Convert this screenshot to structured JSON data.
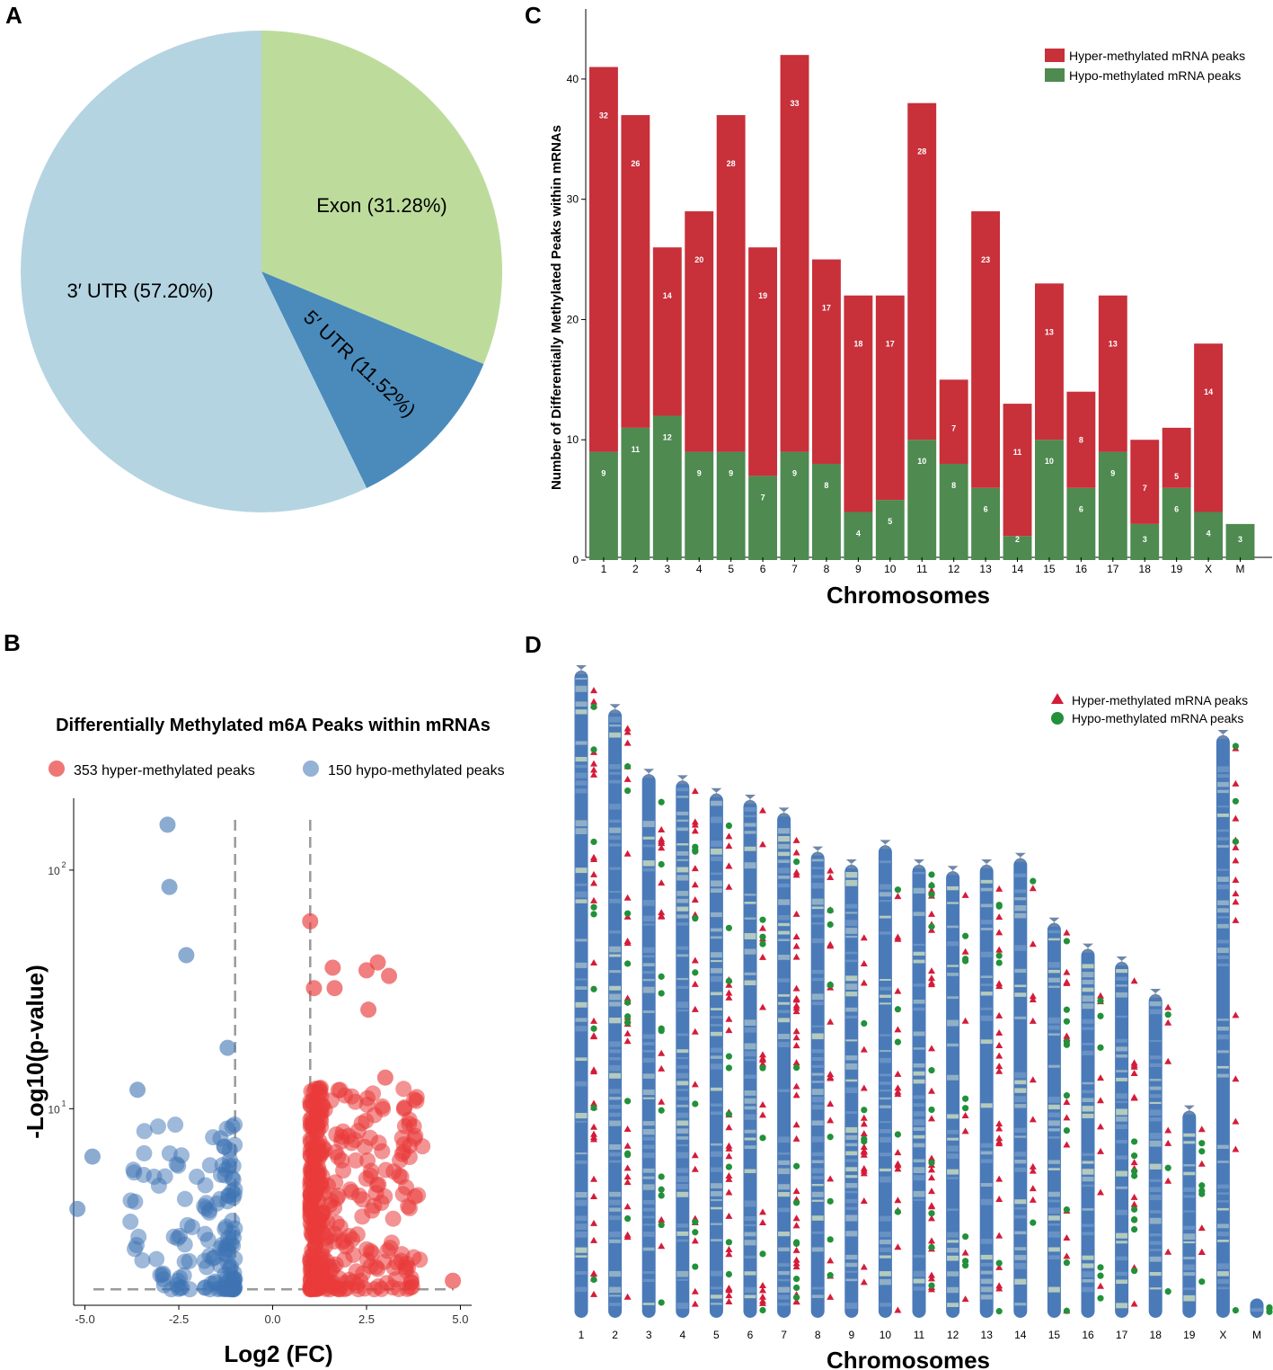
{
  "panels": {
    "A": "A",
    "B": "B",
    "C": "C",
    "D": "D"
  },
  "colors": {
    "hyper": "#c8303a",
    "hypo": "#4f8a51",
    "pie_utr3": "#b5d4e2",
    "pie_exon": "#bddc9c",
    "pie_utr5": "#4a8bbb",
    "volcano_hyper": "#e93b3b",
    "volcano_hypo": "#3d73b3",
    "ideogram": "#4a7ab8",
    "hyper_marker": "#d41c3a",
    "hypo_marker": "#22913a"
  },
  "chart_data": [
    {
      "id": "A",
      "type": "pie",
      "labels": [
        "3′ UTR (57.20%)",
        "Exon (31.28%)",
        "5′ UTR (11.52%)"
      ],
      "categories": [
        "3′ UTR",
        "Exon",
        "5′ UTR"
      ],
      "values": [
        57.2,
        31.28,
        11.52
      ]
    },
    {
      "id": "B",
      "type": "scatter",
      "title": "Differentially Methylated m6A Peaks within mRNAs",
      "xlabel": "Log2 (FC)",
      "ylabel": "-Log10(p-value)",
      "xlim": [
        -5.3,
        5.3
      ],
      "ylim_log": [
        1.5,
        200
      ],
      "x_ticks": [
        "-5.0",
        "-2.5",
        "0.0",
        "2.5",
        "5.0"
      ],
      "y_ticks": [
        {
          "base": "10",
          "exp": "1",
          "value": 10
        },
        {
          "base": "10",
          "exp": "2",
          "value": 100
        }
      ],
      "thresholds": {
        "x": [
          -1,
          1
        ],
        "y": 1.75
      },
      "legend": [
        {
          "label": "353 hyper-methylated peaks",
          "series": "hyper"
        },
        {
          "label": "150 hypo-methylated peaks",
          "series": "hypo"
        }
      ],
      "series": [
        {
          "name": "hyper",
          "count": 353
        },
        {
          "name": "hypo",
          "count": 150
        }
      ],
      "labeled_points": [
        {
          "series": "hypo",
          "x": -2.8,
          "y": 155
        },
        {
          "series": "hypo",
          "x": -2.75,
          "y": 85
        },
        {
          "series": "hypo",
          "x": -2.3,
          "y": 44
        },
        {
          "series": "hypo",
          "x": -1.2,
          "y": 18
        },
        {
          "series": "hypo",
          "x": -3.6,
          "y": 12
        },
        {
          "series": "hypo",
          "x": -4.8,
          "y": 6.3
        },
        {
          "series": "hypo",
          "x": -5.2,
          "y": 3.8
        },
        {
          "series": "hyper",
          "x": 1.0,
          "y": 61
        },
        {
          "series": "hyper",
          "x": 1.6,
          "y": 39
        },
        {
          "series": "hyper",
          "x": 2.8,
          "y": 41
        },
        {
          "series": "hyper",
          "x": 2.5,
          "y": 38
        },
        {
          "series": "hyper",
          "x": 3.1,
          "y": 36
        },
        {
          "series": "hyper",
          "x": 1.1,
          "y": 32
        },
        {
          "series": "hyper",
          "x": 1.65,
          "y": 32
        },
        {
          "series": "hyper",
          "x": 2.55,
          "y": 26
        },
        {
          "series": "hyper",
          "x": 3.0,
          "y": 13.5
        },
        {
          "series": "hyper",
          "x": 3.5,
          "y": 10
        },
        {
          "series": "hyper",
          "x": 4.8,
          "y": 1.9
        }
      ]
    },
    {
      "id": "C",
      "type": "bar",
      "stacked": true,
      "xlabel": "Chromosomes",
      "ylabel": "Number of Differentially Methylated Peaks within mRNAs",
      "ylim": [
        0,
        45
      ],
      "y_ticks": [
        0,
        10,
        20,
        30,
        40
      ],
      "categories": [
        "1",
        "2",
        "3",
        "4",
        "5",
        "6",
        "7",
        "8",
        "9",
        "10",
        "11",
        "12",
        "13",
        "14",
        "15",
        "16",
        "17",
        "18",
        "19",
        "X",
        "M"
      ],
      "series": [
        {
          "name": "Hypo-methylated mRNA peaks",
          "key": "hypo",
          "values": [
            9,
            11,
            12,
            9,
            9,
            7,
            9,
            8,
            4,
            5,
            10,
            8,
            6,
            2,
            10,
            6,
            9,
            3,
            6,
            4,
            3
          ]
        },
        {
          "name": "Hyper-methylated mRNA peaks",
          "key": "hyper",
          "values": [
            32,
            26,
            14,
            20,
            28,
            19,
            33,
            17,
            18,
            17,
            28,
            7,
            23,
            11,
            13,
            8,
            13,
            7,
            5,
            14,
            0
          ]
        }
      ],
      "legend": [
        "Hyper-methylated mRNA peaks",
        "Hypo-methylated mRNA peaks"
      ]
    },
    {
      "id": "D",
      "type": "ideogram",
      "xlabel": "Chromosomes",
      "categories": [
        "1",
        "2",
        "3",
        "4",
        "5",
        "6",
        "7",
        "8",
        "9",
        "10",
        "11",
        "12",
        "13",
        "14",
        "15",
        "16",
        "17",
        "18",
        "19",
        "X",
        "M"
      ],
      "relative_lengths": [
        1.0,
        0.94,
        0.84,
        0.83,
        0.81,
        0.8,
        0.78,
        0.72,
        0.7,
        0.73,
        0.7,
        0.69,
        0.7,
        0.71,
        0.61,
        0.57,
        0.55,
        0.5,
        0.32,
        0.9,
        0.03
      ],
      "hyper_counts": [
        32,
        26,
        14,
        20,
        28,
        19,
        33,
        17,
        18,
        17,
        28,
        7,
        23,
        11,
        13,
        8,
        13,
        7,
        5,
        14,
        0
      ],
      "hypo_counts": [
        9,
        11,
        12,
        9,
        9,
        7,
        9,
        8,
        4,
        5,
        10,
        8,
        6,
        2,
        10,
        6,
        9,
        3,
        6,
        4,
        3
      ],
      "legend": [
        "Hyper-methylated mRNA peaks",
        "Hypo-methylated mRNA peaks"
      ]
    }
  ]
}
